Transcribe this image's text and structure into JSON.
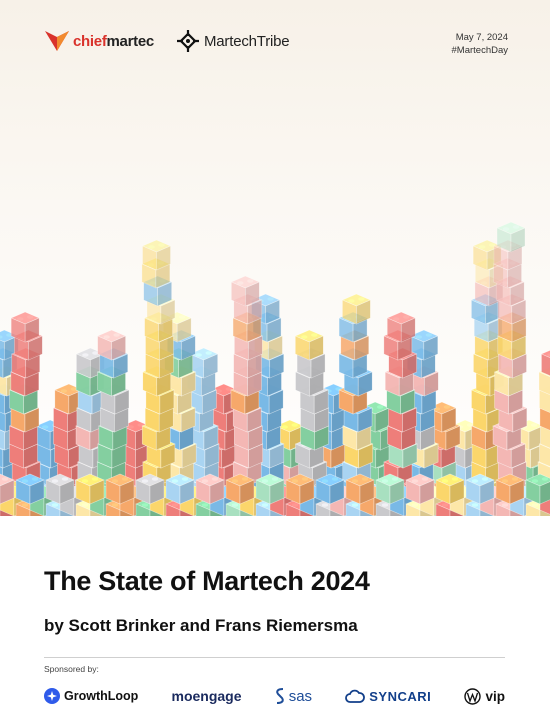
{
  "header": {
    "logo_chief": {
      "prefix": "chief",
      "suffix": "martec",
      "icon": "chiefmartec-chevron-icon"
    },
    "logo_tribe": {
      "text": "MartechTribe",
      "icon": "martechtribe-knot-icon"
    },
    "date": "May 7, 2024",
    "hashtag": "#MartechDay"
  },
  "cover": {
    "title": "The State of Martech 2024",
    "subtitle": "by Scott Brinker and Frans Riemersma",
    "illustration": "isometric-lego-bricks-city",
    "palette": [
      "#ee7e7a",
      "#f6a86a",
      "#fbd66b",
      "#84cfa0",
      "#79b9e6",
      "#c9c9cc",
      "#f4b7b4",
      "#fde7a8",
      "#a8e0c0",
      "#a9d4f2"
    ]
  },
  "sponsors": {
    "label": "Sponsored by:",
    "items": [
      {
        "name": "GrowthLoop",
        "icon": "growthloop-icon"
      },
      {
        "name": "moengage",
        "icon": ""
      },
      {
        "name": "sas",
        "icon": "sas-icon"
      },
      {
        "name": "SYNCARI",
        "icon": "syncari-cloud-icon"
      },
      {
        "name": "vip",
        "icon": "wordpress-icon"
      }
    ]
  }
}
